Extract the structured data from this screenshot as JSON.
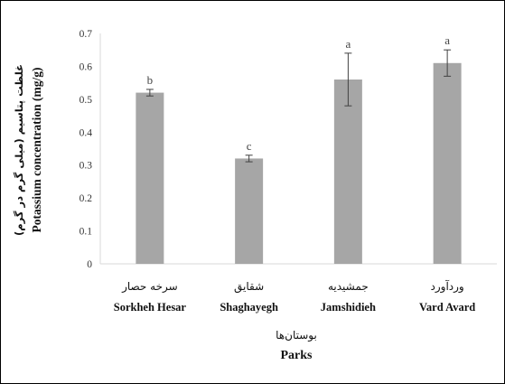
{
  "chart_data": {
    "type": "bar",
    "categories": [
      {
        "fa": "سرخه حصار",
        "en": "Sorkheh Hesar"
      },
      {
        "fa": "شقایق",
        "en": "Shaghayegh"
      },
      {
        "fa": "جمشیدیه",
        "en": "Jamshidieh"
      },
      {
        "fa": "وردآورد",
        "en": "Vard Avard"
      }
    ],
    "values": [
      0.52,
      0.32,
      0.56,
      0.61
    ],
    "errors": [
      0.01,
      0.01,
      0.08,
      0.04
    ],
    "letters": [
      "b",
      "c",
      "a",
      "a"
    ],
    "xlabel_fa": "بوستان‌ها",
    "xlabel": "Parks",
    "ylabel_fa": "غلظت پتاسیم (میلی گرم در گرم)",
    "ylabel": "Potassium concentration (mg/g)",
    "ylim": [
      0,
      0.7
    ],
    "yticks": [
      "0",
      "0.1",
      "0.2",
      "0.3",
      "0.4",
      "0.5",
      "0.6",
      "0.7"
    ],
    "grid": false,
    "bar_color": "#a6a6a6",
    "error_color": "#404040"
  }
}
